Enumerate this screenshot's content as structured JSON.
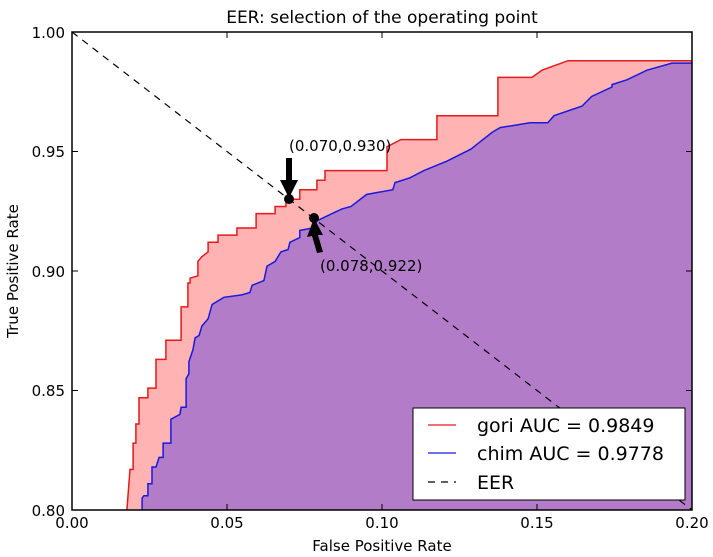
{
  "chart_data": {
    "type": "area",
    "title": "EER: selection of the operating point",
    "xlabel": "False Positive Rate",
    "ylabel": "True Positive Rate",
    "xlim": [
      0.0,
      0.2
    ],
    "ylim": [
      0.8,
      1.0
    ],
    "xticks": [
      "0.00",
      "0.05",
      "0.10",
      "0.15",
      "0.20"
    ],
    "yticks": [
      "0.80",
      "0.85",
      "0.90",
      "0.95",
      "1.00"
    ],
    "grid": false,
    "legend_position": "lower right",
    "series": [
      {
        "name": "gori AUC = 0.9849",
        "color": "#e41a1c",
        "fill": "#ffb3b3",
        "x": [
          0.0177,
          0.0187,
          0.019,
          0.0197,
          0.0197,
          0.0206,
          0.0206,
          0.0216,
          0.0216,
          0.0245,
          0.0245,
          0.0271,
          0.0271,
          0.0303,
          0.0303,
          0.0352,
          0.0352,
          0.0374,
          0.0374,
          0.0381,
          0.0381,
          0.0406,
          0.0406,
          0.0419,
          0.0439,
          0.0439,
          0.0452,
          0.0471,
          0.0471,
          0.0532,
          0.0532,
          0.0594,
          0.0594,
          0.0655,
          0.0655,
          0.069,
          0.069,
          0.0735,
          0.0735,
          0.079,
          0.079,
          0.0816,
          0.0816,
          0.0881,
          0.0881,
          0.1016,
          0.1016,
          0.1061,
          0.1071,
          0.1177,
          0.1177,
          0.1374,
          0.1374,
          0.1484,
          0.1516,
          0.16,
          0.2
        ],
        "y": [
          0.8,
          0.817,
          0.817,
          0.817,
          0.828,
          0.828,
          0.836,
          0.836,
          0.847,
          0.847,
          0.851,
          0.851,
          0.863,
          0.863,
          0.871,
          0.871,
          0.885,
          0.885,
          0.895,
          0.895,
          0.897,
          0.898,
          0.904,
          0.906,
          0.908,
          0.912,
          0.912,
          0.912,
          0.915,
          0.915,
          0.918,
          0.918,
          0.924,
          0.924,
          0.927,
          0.927,
          0.93,
          0.93,
          0.934,
          0.934,
          0.938,
          0.938,
          0.942,
          0.942,
          0.942,
          0.942,
          0.952,
          0.955,
          0.955,
          0.955,
          0.965,
          0.965,
          0.981,
          0.981,
          0.984,
          0.988,
          0.988
        ]
      },
      {
        "name": "chim AUC = 0.9778",
        "color": "#1a1adc",
        "fill": "#b27cc8",
        "x": [
          0.0226,
          0.0226,
          0.0232,
          0.0245,
          0.0245,
          0.0258,
          0.0258,
          0.0271,
          0.0281,
          0.0294,
          0.0294,
          0.0319,
          0.0319,
          0.0348,
          0.0352,
          0.0368,
          0.0368,
          0.0377,
          0.0377,
          0.039,
          0.0397,
          0.041,
          0.0419,
          0.0439,
          0.0452,
          0.049,
          0.0548,
          0.0574,
          0.0581,
          0.0619,
          0.0629,
          0.0655,
          0.0674,
          0.0697,
          0.0703,
          0.0735,
          0.0735,
          0.0777,
          0.079,
          0.0806,
          0.0839,
          0.0871,
          0.09,
          0.095,
          0.1035,
          0.1042,
          0.109,
          0.1135,
          0.121,
          0.1287,
          0.1306,
          0.1355,
          0.1381,
          0.1429,
          0.1477,
          0.1535,
          0.1555,
          0.1645,
          0.1676,
          0.1742,
          0.1742,
          0.179,
          0.1855,
          0.1935,
          0.2
        ],
        "y": [
          0.8,
          0.805,
          0.806,
          0.806,
          0.811,
          0.811,
          0.818,
          0.818,
          0.822,
          0.822,
          0.828,
          0.828,
          0.838,
          0.84,
          0.843,
          0.843,
          0.855,
          0.857,
          0.862,
          0.867,
          0.872,
          0.873,
          0.877,
          0.88,
          0.886,
          0.889,
          0.89,
          0.891,
          0.894,
          0.896,
          0.902,
          0.904,
          0.908,
          0.909,
          0.912,
          0.914,
          0.917,
          0.918,
          0.921,
          0.922,
          0.924,
          0.926,
          0.927,
          0.932,
          0.934,
          0.937,
          0.939,
          0.942,
          0.946,
          0.951,
          0.953,
          0.958,
          0.96,
          0.961,
          0.962,
          0.962,
          0.965,
          0.969,
          0.973,
          0.977,
          0.978,
          0.98,
          0.984,
          0.987,
          0.987
        ]
      },
      {
        "name": "EER",
        "color": "#000000",
        "style": "dashed",
        "x": [
          0.0,
          0.2
        ],
        "y": [
          1.0,
          0.8
        ]
      }
    ],
    "annotations": [
      {
        "text": "(0.070,0.930)",
        "point": [
          0.07,
          0.93
        ],
        "arrow": "down"
      },
      {
        "text": "(0.078,0.922)",
        "point": [
          0.078,
          0.922
        ],
        "arrow": "up"
      }
    ]
  },
  "legend": {
    "items": [
      {
        "label": "gori AUC = 0.9849",
        "color": "#e41a1c",
        "style": "solid"
      },
      {
        "label": "chim AUC = 0.9778",
        "color": "#1a1adc",
        "style": "solid"
      },
      {
        "label": "EER",
        "color": "#000000",
        "style": "dashed"
      }
    ]
  }
}
